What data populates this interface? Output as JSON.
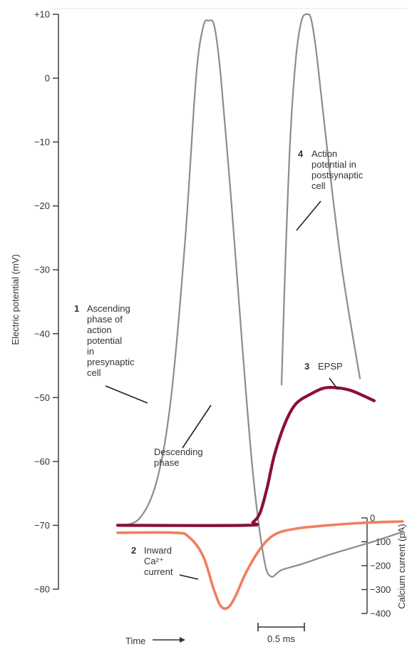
{
  "chart_data": {
    "type": "line",
    "ylabel": "Electric potential (mV)",
    "y2label": "Calcium current (pA)",
    "xlabel": "Time",
    "ylim": [
      -82,
      10
    ],
    "y2lim": [
      -400,
      0
    ],
    "yticks": [
      "+10",
      "0",
      "−10",
      "−20",
      "−30",
      "−40",
      "−50",
      "−60",
      "−70",
      "−80"
    ],
    "ytick_values": [
      10,
      0,
      -10,
      -20,
      -30,
      -40,
      -50,
      -60,
      -70,
      -80
    ],
    "y2ticks": [
      "0",
      "−100",
      "−200",
      "−300",
      "−400"
    ],
    "y2tick_values": [
      0,
      -100,
      -200,
      -300,
      -400
    ],
    "scale_bar": {
      "label": "0.5 ms",
      "duration_ms": 0.5
    },
    "colors": {
      "presynaptic": "#8c8c8c",
      "postsynaptic_ap": "#8c8c8c",
      "epsp": "#8a0f3c",
      "calcium": "#f07f5e",
      "axis": "#333333"
    },
    "series": [
      {
        "key": "presynaptic",
        "axis": "left",
        "points": [
          [
            0.0,
            -70
          ],
          [
            0.3,
            -69
          ],
          [
            0.55,
            -63
          ],
          [
            0.75,
            -50
          ],
          [
            0.95,
            -25
          ],
          [
            1.1,
            0
          ],
          [
            1.2,
            8
          ],
          [
            1.28,
            9
          ],
          [
            1.36,
            8
          ],
          [
            1.45,
            0
          ],
          [
            1.6,
            -20
          ],
          [
            1.75,
            -42
          ],
          [
            1.9,
            -62
          ],
          [
            2.05,
            -75
          ],
          [
            2.15,
            -78
          ],
          [
            2.3,
            -77
          ],
          [
            2.6,
            -76
          ],
          [
            3.0,
            -74.5
          ],
          [
            3.6,
            -72.5
          ],
          [
            4.0,
            -71
          ]
        ]
      },
      {
        "key": "postsynaptic_ap",
        "axis": "left",
        "points": [
          [
            2.3,
            -48
          ],
          [
            2.35,
            -30
          ],
          [
            2.42,
            -10
          ],
          [
            2.5,
            3
          ],
          [
            2.58,
            9
          ],
          [
            2.66,
            10
          ],
          [
            2.72,
            9
          ],
          [
            2.8,
            3
          ],
          [
            2.95,
            -12
          ],
          [
            3.15,
            -30
          ],
          [
            3.4,
            -47
          ]
        ]
      },
      {
        "key": "epsp",
        "axis": "left",
        "points": [
          [
            0.0,
            -70
          ],
          [
            1.8,
            -70
          ],
          [
            1.9,
            -69.5
          ],
          [
            2.0,
            -68
          ],
          [
            2.1,
            -64
          ],
          [
            2.2,
            -59
          ],
          [
            2.35,
            -54
          ],
          [
            2.5,
            -51
          ],
          [
            2.7,
            -49.5
          ],
          [
            2.9,
            -48.5
          ],
          [
            3.1,
            -48.5
          ],
          [
            3.3,
            -49
          ],
          [
            3.6,
            -50.5
          ]
        ]
      },
      {
        "key": "calcium",
        "axis": "right",
        "points": [
          [
            0.0,
            -62
          ],
          [
            0.8,
            -62
          ],
          [
            1.0,
            -80
          ],
          [
            1.2,
            -160
          ],
          [
            1.35,
            -300
          ],
          [
            1.45,
            -370
          ],
          [
            1.55,
            -375
          ],
          [
            1.65,
            -330
          ],
          [
            1.8,
            -230
          ],
          [
            2.0,
            -130
          ],
          [
            2.2,
            -70
          ],
          [
            2.5,
            -45
          ],
          [
            3.0,
            -30
          ],
          [
            3.5,
            -20
          ],
          [
            4.0,
            -15
          ]
        ]
      }
    ],
    "annotations": [
      {
        "key": "ascending",
        "number": "1",
        "lines": [
          "Ascending",
          "phase of",
          "action",
          "potential",
          "in",
          "presynaptic",
          "cell"
        ]
      },
      {
        "key": "descending",
        "number": "",
        "lines": [
          "Descending",
          "phase"
        ]
      },
      {
        "key": "postsynaptic",
        "number": "4",
        "lines": [
          "Action",
          "potential in",
          "postsynaptic",
          "cell"
        ]
      },
      {
        "key": "epsp",
        "number": "3",
        "lines": [
          "EPSP"
        ]
      },
      {
        "key": "calcium",
        "number": "2",
        "lines": [
          "Inward",
          "Ca²⁺",
          "current"
        ]
      }
    ]
  }
}
